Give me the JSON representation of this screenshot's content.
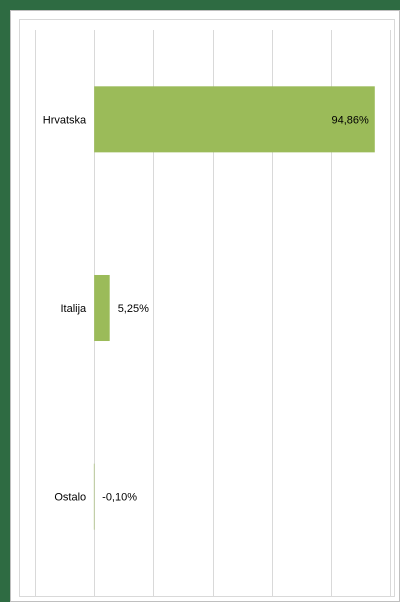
{
  "chart_data": {
    "type": "bar",
    "orientation": "horizontal",
    "categories": [
      "Hrvatska",
      "Italija",
      "Ostalo"
    ],
    "values": [
      94.86,
      5.25,
      -0.1
    ],
    "data_labels": [
      "94,86%",
      "5,25%",
      "-0,10%"
    ],
    "xlim": [
      -20,
      100
    ],
    "grid": true,
    "legend": "none",
    "colors": {
      "bar": "#9bbb59",
      "grid": "#d9d9d9",
      "frame": "#2e6b42"
    }
  }
}
